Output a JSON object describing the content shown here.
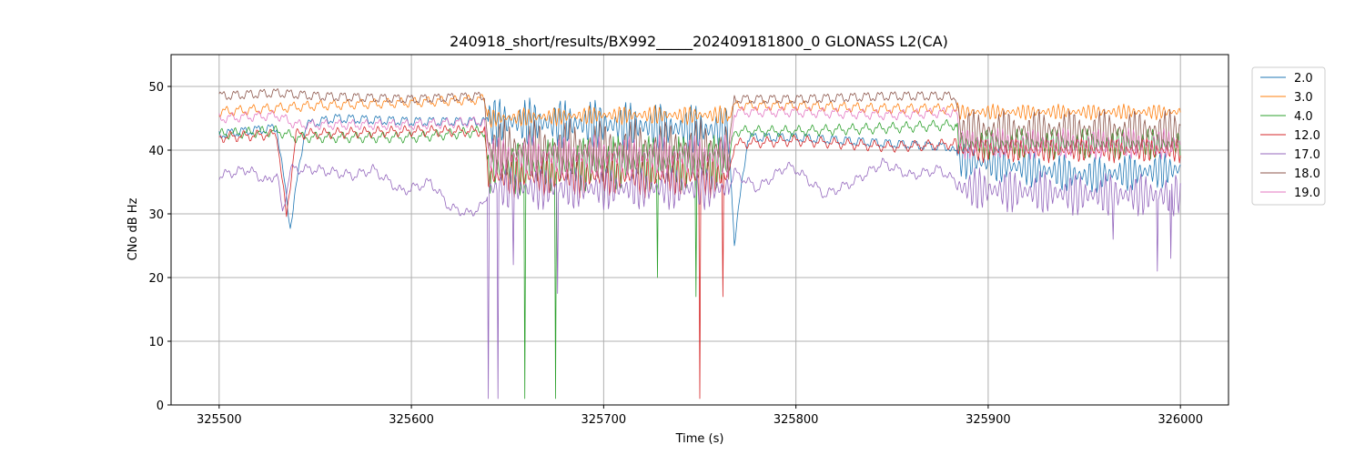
{
  "chart_data": {
    "type": "line",
    "title": "240918_short/results/BX992_____202409181800_0 GLONASS L2(CA)",
    "xlabel": "Time (s)",
    "ylabel": "CNo dB Hz",
    "xlim": [
      325475,
      326025
    ],
    "ylim": [
      0,
      55
    ],
    "xticks": [
      325500,
      325600,
      325700,
      325800,
      325900,
      326000
    ],
    "yticks": [
      0,
      10,
      20,
      30,
      40,
      50
    ],
    "grid": true,
    "legend_position": "upper-right outside",
    "colors": {
      "2.0": "#1f77b4",
      "3.0": "#ff7f0e",
      "4.0": "#2ca02c",
      "12.0": "#d62728",
      "17.0": "#9467bd",
      "18.0": "#8c564b",
      "19.0": "#e377c2"
    },
    "series": [
      {
        "name": "2.0",
        "profile": [
          [
            325500,
            42.5
          ],
          [
            325530,
            43.5
          ],
          [
            325537,
            28
          ],
          [
            325545,
            44
          ],
          [
            325560,
            45
          ],
          [
            325600,
            44.5
          ],
          [
            325640,
            44.5
          ],
          [
            325700,
            44
          ],
          [
            325765,
            43
          ],
          [
            325768,
            25.5
          ],
          [
            325775,
            42
          ],
          [
            325800,
            42
          ],
          [
            325850,
            41
          ],
          [
            325880,
            40.5
          ],
          [
            325886,
            38.5
          ],
          [
            325950,
            36
          ],
          [
            326000,
            37
          ]
        ],
        "osc": [
          [
            325640,
            325765,
            8
          ],
          [
            325884,
            326000,
            6
          ]
        ],
        "spikes": []
      },
      {
        "name": "3.0",
        "profile": [
          [
            325500,
            46
          ],
          [
            325550,
            47
          ],
          [
            325600,
            47.5
          ],
          [
            325638,
            48
          ],
          [
            325640,
            45
          ],
          [
            325700,
            45.5
          ],
          [
            325765,
            45.5
          ],
          [
            325768,
            47
          ],
          [
            325800,
            47
          ],
          [
            325850,
            46.5
          ],
          [
            325883,
            46.5
          ],
          [
            325886,
            46
          ],
          [
            325950,
            46
          ],
          [
            326000,
            46
          ]
        ],
        "osc": [
          [
            325640,
            325765,
            3
          ],
          [
            325884,
            326000,
            2.5
          ]
        ],
        "spikes": []
      },
      {
        "name": "4.0",
        "profile": [
          [
            325500,
            42.5
          ],
          [
            325530,
            43
          ],
          [
            325540,
            42
          ],
          [
            325560,
            42
          ],
          [
            325600,
            42
          ],
          [
            325638,
            43
          ],
          [
            325640,
            37
          ],
          [
            325700,
            38
          ],
          [
            325765,
            38
          ],
          [
            325768,
            43
          ],
          [
            325800,
            43
          ],
          [
            325850,
            43.5
          ],
          [
            325883,
            44
          ],
          [
            325886,
            41
          ],
          [
            325950,
            41
          ],
          [
            326000,
            41
          ]
        ],
        "osc": [
          [
            325640,
            325765,
            9
          ],
          [
            325884,
            326000,
            5
          ]
        ],
        "spikes": [
          [
            325659,
            1
          ],
          [
            325675,
            1
          ],
          [
            325728,
            20
          ],
          [
            325748,
            17
          ]
        ]
      },
      {
        "name": "12.0",
        "profile": [
          [
            325500,
            42
          ],
          [
            325530,
            42.5
          ],
          [
            325535,
            29.5
          ],
          [
            325540,
            42.5
          ],
          [
            325600,
            43
          ],
          [
            325638,
            43
          ],
          [
            325640,
            36
          ],
          [
            325700,
            36
          ],
          [
            325765,
            36
          ],
          [
            325768,
            41
          ],
          [
            325800,
            41.5
          ],
          [
            325850,
            40.5
          ],
          [
            325883,
            41
          ],
          [
            325886,
            40
          ],
          [
            325950,
            40
          ],
          [
            326000,
            40
          ]
        ],
        "osc": [
          [
            325640,
            325765,
            7
          ],
          [
            325884,
            326000,
            4
          ]
        ],
        "spikes": [
          [
            325750,
            1
          ],
          [
            325762,
            17
          ]
        ]
      },
      {
        "name": "17.0",
        "profile": [
          [
            325500,
            36
          ],
          [
            325515,
            37
          ],
          [
            325525,
            35
          ],
          [
            325530,
            36.5
          ],
          [
            325533,
            30
          ],
          [
            325537,
            37
          ],
          [
            325550,
            37
          ],
          [
            325570,
            36
          ],
          [
            325580,
            37
          ],
          [
            325595,
            33.5
          ],
          [
            325610,
            35
          ],
          [
            325620,
            31
          ],
          [
            325630,
            30
          ],
          [
            325638,
            31.5
          ],
          [
            325640,
            34
          ],
          [
            325700,
            34
          ],
          [
            325765,
            34
          ],
          [
            325768,
            36.5
          ],
          [
            325780,
            34
          ],
          [
            325795,
            37.5
          ],
          [
            325800,
            37
          ],
          [
            325815,
            33
          ],
          [
            325830,
            35
          ],
          [
            325845,
            38
          ],
          [
            325860,
            36
          ],
          [
            325875,
            37
          ],
          [
            325883,
            35
          ],
          [
            325886,
            34
          ],
          [
            325950,
            33
          ],
          [
            326000,
            33
          ]
        ],
        "osc": [
          [
            325640,
            325765,
            7
          ],
          [
            325884,
            326000,
            7
          ]
        ],
        "spikes": [
          [
            325640,
            1
          ],
          [
            325645,
            1
          ],
          [
            325653,
            22
          ],
          [
            325676,
            17.5
          ],
          [
            325965,
            26
          ],
          [
            325988,
            21
          ],
          [
            325995,
            23
          ]
        ]
      },
      {
        "name": "18.0",
        "profile": [
          [
            325500,
            48.5
          ],
          [
            325530,
            49
          ],
          [
            325550,
            48.5
          ],
          [
            325600,
            48
          ],
          [
            325638,
            48.5
          ],
          [
            325640,
            40
          ],
          [
            325700,
            40
          ],
          [
            325765,
            40
          ],
          [
            325768,
            48
          ],
          [
            325800,
            48
          ],
          [
            325850,
            48.5
          ],
          [
            325883,
            48.5
          ],
          [
            325886,
            43
          ],
          [
            325950,
            43
          ],
          [
            326000,
            43
          ]
        ],
        "osc": [
          [
            325640,
            325765,
            10
          ],
          [
            325884,
            326000,
            7
          ]
        ],
        "spikes": []
      },
      {
        "name": "19.0",
        "profile": [
          [
            325500,
            45
          ],
          [
            325530,
            45.5
          ],
          [
            325540,
            44
          ],
          [
            325600,
            44
          ],
          [
            325638,
            44.5
          ],
          [
            325640,
            39
          ],
          [
            325700,
            39
          ],
          [
            325765,
            39
          ],
          [
            325768,
            46
          ],
          [
            325800,
            46
          ],
          [
            325850,
            45.5
          ],
          [
            325883,
            46
          ],
          [
            325886,
            41
          ],
          [
            325950,
            41
          ],
          [
            326000,
            41
          ]
        ],
        "osc": [
          [
            325640,
            325765,
            7
          ],
          [
            325884,
            326000,
            5
          ]
        ],
        "spikes": []
      }
    ]
  }
}
